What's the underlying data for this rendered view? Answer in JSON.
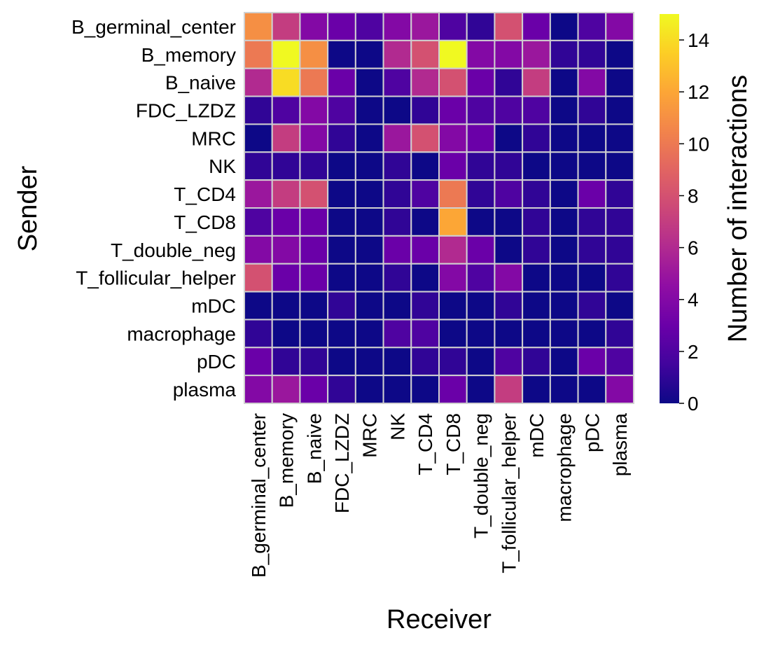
{
  "chart_data": {
    "type": "heatmap",
    "title": "",
    "xlabel": "Receiver",
    "ylabel": "Sender",
    "rows": [
      "B_germinal_center",
      "B_memory",
      "B_naive",
      "FDC_LZDZ",
      "MRC",
      "NK",
      "T_CD4",
      "T_CD8",
      "T_double_neg",
      "T_follicular_helper",
      "mDC",
      "macrophage",
      "pDC",
      "plasma"
    ],
    "columns": [
      "B_germinal_center",
      "B_memory",
      "B_naive",
      "FDC_LZDZ",
      "MRC",
      "NK",
      "T_CD4",
      "T_CD8",
      "T_double_neg",
      "T_follicular_helper",
      "mDC",
      "macrophage",
      "pDC",
      "plasma"
    ],
    "values": [
      [
        11,
        7,
        4,
        3,
        2,
        4,
        5,
        2,
        1,
        8,
        3,
        0,
        2,
        4
      ],
      [
        10,
        15,
        11,
        0,
        0,
        6,
        8,
        15,
        4,
        4,
        5,
        1,
        1,
        0
      ],
      [
        6,
        14,
        10,
        3,
        0,
        2,
        6,
        8,
        3,
        1,
        7,
        0,
        4,
        0
      ],
      [
        1,
        2,
        4,
        2,
        0,
        0,
        1,
        3,
        2,
        2,
        2,
        0,
        1,
        0
      ],
      [
        0,
        7,
        4,
        1,
        0,
        5,
        8,
        4,
        3,
        0,
        1,
        0,
        0,
        0
      ],
      [
        1,
        1,
        1,
        0,
        0,
        1,
        0,
        3,
        1,
        1,
        0,
        0,
        0,
        0
      ],
      [
        5,
        7,
        8,
        0,
        0,
        1,
        2,
        10,
        1,
        2,
        1,
        0,
        3,
        1
      ],
      [
        2,
        3,
        3,
        0,
        0,
        1,
        0,
        12,
        0,
        0,
        1,
        0,
        1,
        1
      ],
      [
        4,
        4,
        3,
        0,
        0,
        3,
        3,
        6,
        3,
        0,
        1,
        0,
        1,
        1
      ],
      [
        8,
        3,
        3,
        0,
        0,
        1,
        0,
        4,
        2,
        4,
        0,
        0,
        0,
        1
      ],
      [
        0,
        0,
        0,
        1,
        0,
        0,
        1,
        0,
        0,
        1,
        0,
        0,
        1,
        0
      ],
      [
        1,
        0,
        0,
        0,
        0,
        2,
        2,
        0,
        0,
        0,
        0,
        0,
        0,
        1
      ],
      [
        3,
        1,
        1,
        0,
        0,
        0,
        1,
        1,
        0,
        2,
        1,
        0,
        3,
        2
      ],
      [
        4,
        5,
        3,
        1,
        0,
        0,
        0,
        3,
        0,
        7,
        0,
        0,
        0,
        4
      ]
    ],
    "colormap": "plasma",
    "vmin": 0,
    "vmax": 15,
    "grid_line_color": "#d0d0d0",
    "colorbar": {
      "label": "Number of interactions",
      "ticks": [
        0,
        2,
        4,
        6,
        8,
        10,
        12,
        14
      ]
    }
  }
}
